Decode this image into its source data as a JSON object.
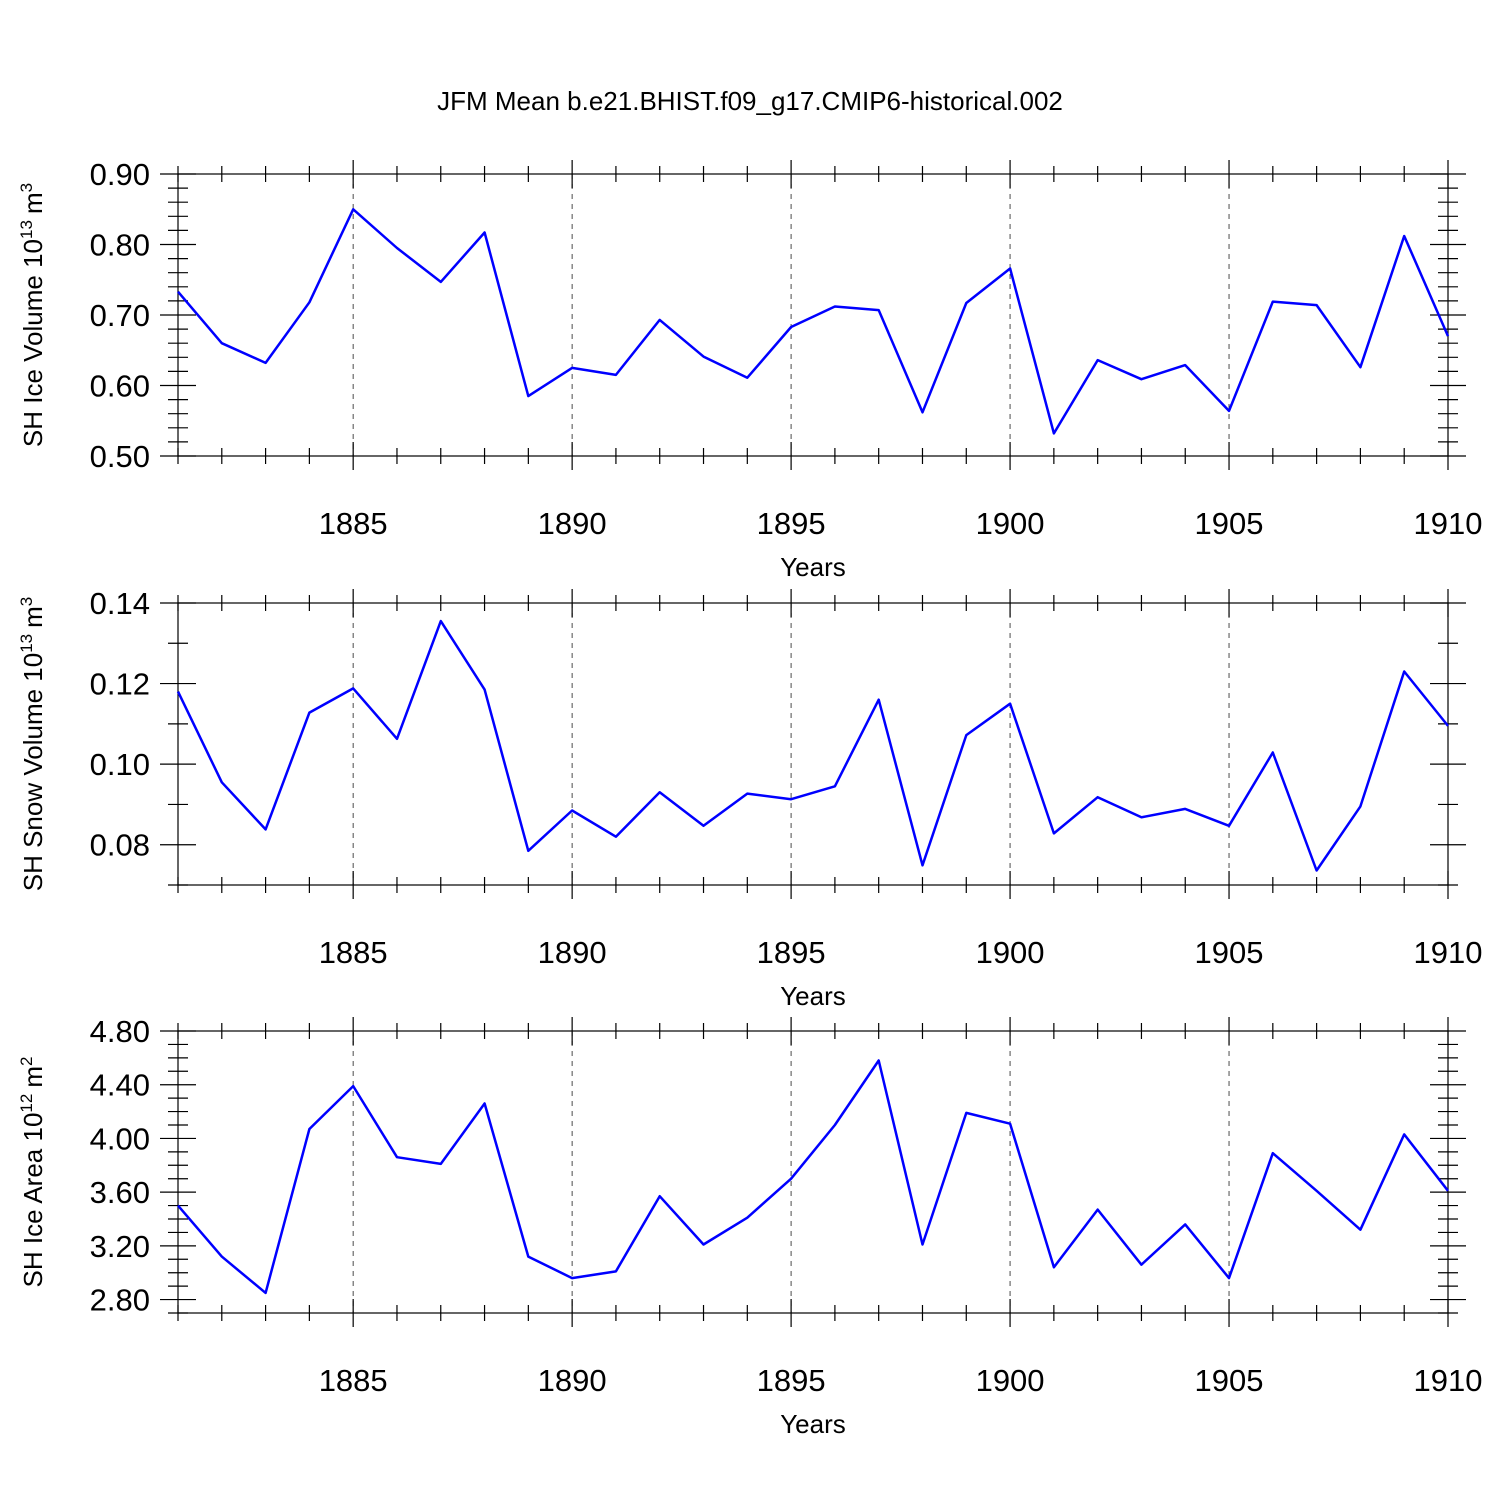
{
  "title": "JFM Mean b.e21.BHIST.f09_g17.CMIP6-historical.002",
  "chart_data": [
    {
      "type": "line",
      "ylabel": "SH Ice Volume 10",
      "ylabel_exp": "13",
      "ylabel_unit": "m",
      "ylabel_unit_exp": "3",
      "xlabel": "Years",
      "xlim": [
        1881,
        1910
      ],
      "ylim": [
        0.5,
        0.9
      ],
      "yticks": [
        0.5,
        0.6,
        0.7,
        0.8,
        0.9
      ],
      "ytick_labels": [
        "0.50",
        "0.60",
        "0.70",
        "0.80",
        "0.90"
      ],
      "ytick_minor_step": 0.02,
      "xticks": [
        1885,
        1890,
        1895,
        1900,
        1905,
        1910
      ],
      "xtick_labels": [
        "1885",
        "1890",
        "1895",
        "1900",
        "1905",
        "1910"
      ],
      "grid_x": [
        1885,
        1890,
        1895,
        1900,
        1905
      ],
      "color": "#0000ff",
      "x": [
        1881,
        1882,
        1883,
        1884,
        1885,
        1886,
        1887,
        1888,
        1889,
        1890,
        1891,
        1892,
        1893,
        1894,
        1895,
        1896,
        1897,
        1898,
        1899,
        1900,
        1901,
        1902,
        1903,
        1904,
        1905,
        1906,
        1907,
        1908,
        1909,
        1910
      ],
      "values": [
        0.733,
        0.66,
        0.632,
        0.718,
        0.85,
        0.795,
        0.747,
        0.817,
        0.585,
        0.625,
        0.615,
        0.693,
        0.641,
        0.611,
        0.683,
        0.712,
        0.707,
        0.562,
        0.717,
        0.766,
        0.532,
        0.636,
        0.609,
        0.629,
        0.564,
        0.719,
        0.714,
        0.626,
        0.812,
        0.67
      ]
    },
    {
      "type": "line",
      "ylabel": "SH Snow Volume 10",
      "ylabel_exp": "13",
      "ylabel_unit": "m",
      "ylabel_unit_exp": "3",
      "xlabel": "Years",
      "xlim": [
        1881,
        1910
      ],
      "ylim": [
        0.07,
        0.14
      ],
      "yticks": [
        0.08,
        0.1,
        0.12,
        0.14
      ],
      "ytick_labels": [
        "0.08",
        "0.10",
        "0.12",
        "0.14"
      ],
      "ytick_minor_step": 0.01,
      "xticks": [
        1885,
        1890,
        1895,
        1900,
        1905,
        1910
      ],
      "xtick_labels": [
        "1885",
        "1890",
        "1895",
        "1900",
        "1905",
        "1910"
      ],
      "grid_x": [
        1885,
        1890,
        1895,
        1900,
        1905
      ],
      "color": "#0000ff",
      "x": [
        1881,
        1882,
        1883,
        1884,
        1885,
        1886,
        1887,
        1888,
        1889,
        1890,
        1891,
        1892,
        1893,
        1894,
        1895,
        1896,
        1897,
        1898,
        1899,
        1900,
        1901,
        1902,
        1903,
        1904,
        1905,
        1906,
        1907,
        1908,
        1909,
        1910
      ],
      "values": [
        0.118,
        0.0955,
        0.0838,
        0.1128,
        0.1188,
        0.1063,
        0.1355,
        0.1185,
        0.0785,
        0.0885,
        0.082,
        0.093,
        0.0847,
        0.0927,
        0.0913,
        0.0945,
        0.116,
        0.0749,
        0.1072,
        0.115,
        0.0828,
        0.0918,
        0.0868,
        0.0889,
        0.0847,
        0.1029,
        0.0736,
        0.0895,
        0.123,
        0.1095
      ]
    },
    {
      "type": "line",
      "ylabel": "SH Ice Area 10",
      "ylabel_exp": "12",
      "ylabel_unit": "m",
      "ylabel_unit_exp": "2",
      "xlabel": "Years",
      "xlim": [
        1881,
        1910
      ],
      "ylim": [
        2.7,
        4.8
      ],
      "yticks": [
        2.8,
        3.2,
        3.6,
        4.0,
        4.4,
        4.8
      ],
      "ytick_labels": [
        "2.80",
        "3.20",
        "3.60",
        "4.00",
        "4.40",
        "4.80"
      ],
      "ytick_minor_step": 0.1,
      "xticks": [
        1885,
        1890,
        1895,
        1900,
        1905,
        1910
      ],
      "xtick_labels": [
        "1885",
        "1890",
        "1895",
        "1900",
        "1905",
        "1910"
      ],
      "grid_x": [
        1885,
        1890,
        1895,
        1900,
        1905
      ],
      "color": "#0000ff",
      "x": [
        1881,
        1882,
        1883,
        1884,
        1885,
        1886,
        1887,
        1888,
        1889,
        1890,
        1891,
        1892,
        1893,
        1894,
        1895,
        1896,
        1897,
        1898,
        1899,
        1900,
        1901,
        1902,
        1903,
        1904,
        1905,
        1906,
        1907,
        1908,
        1909,
        1910
      ],
      "values": [
        3.5,
        3.12,
        2.85,
        4.07,
        4.39,
        3.86,
        3.81,
        4.26,
        3.12,
        2.96,
        3.01,
        3.57,
        3.21,
        3.41,
        3.7,
        4.1,
        4.58,
        3.21,
        4.19,
        4.11,
        3.04,
        3.47,
        3.06,
        3.36,
        2.96,
        3.89,
        3.61,
        3.32,
        4.03,
        3.61
      ]
    }
  ]
}
